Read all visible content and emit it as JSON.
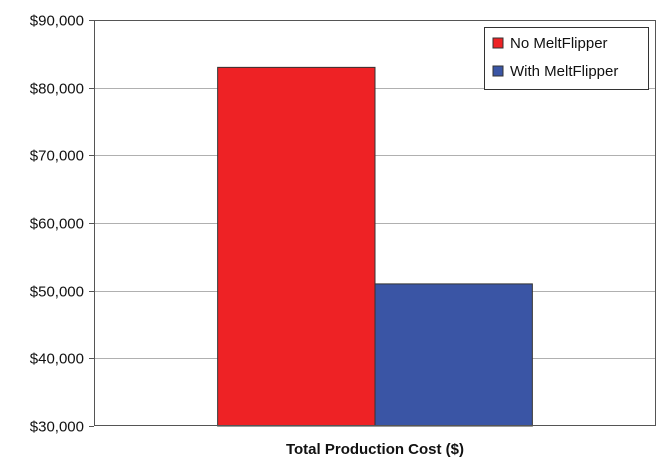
{
  "chart_data": {
    "type": "bar",
    "title": "",
    "xlabel": "",
    "ylabel": "",
    "categories": [
      "Total Production Cost ($)"
    ],
    "series": [
      {
        "name": "No MeltFlipper",
        "values": [
          83000
        ],
        "color": "#EE2225"
      },
      {
        "name": "With MeltFlipper",
        "values": [
          51000
        ],
        "color": "#3A55A5"
      }
    ],
    "ylim": [
      30000,
      90000
    ],
    "y_ticks": [
      30000,
      40000,
      50000,
      60000,
      70000,
      80000,
      90000
    ],
    "y_tick_labels": [
      "$30,000",
      "$40,000",
      "$50,000",
      "$60,000",
      "$70,000",
      "$80,000",
      "$90,000"
    ],
    "grid": true,
    "legend_position": "top-right"
  }
}
